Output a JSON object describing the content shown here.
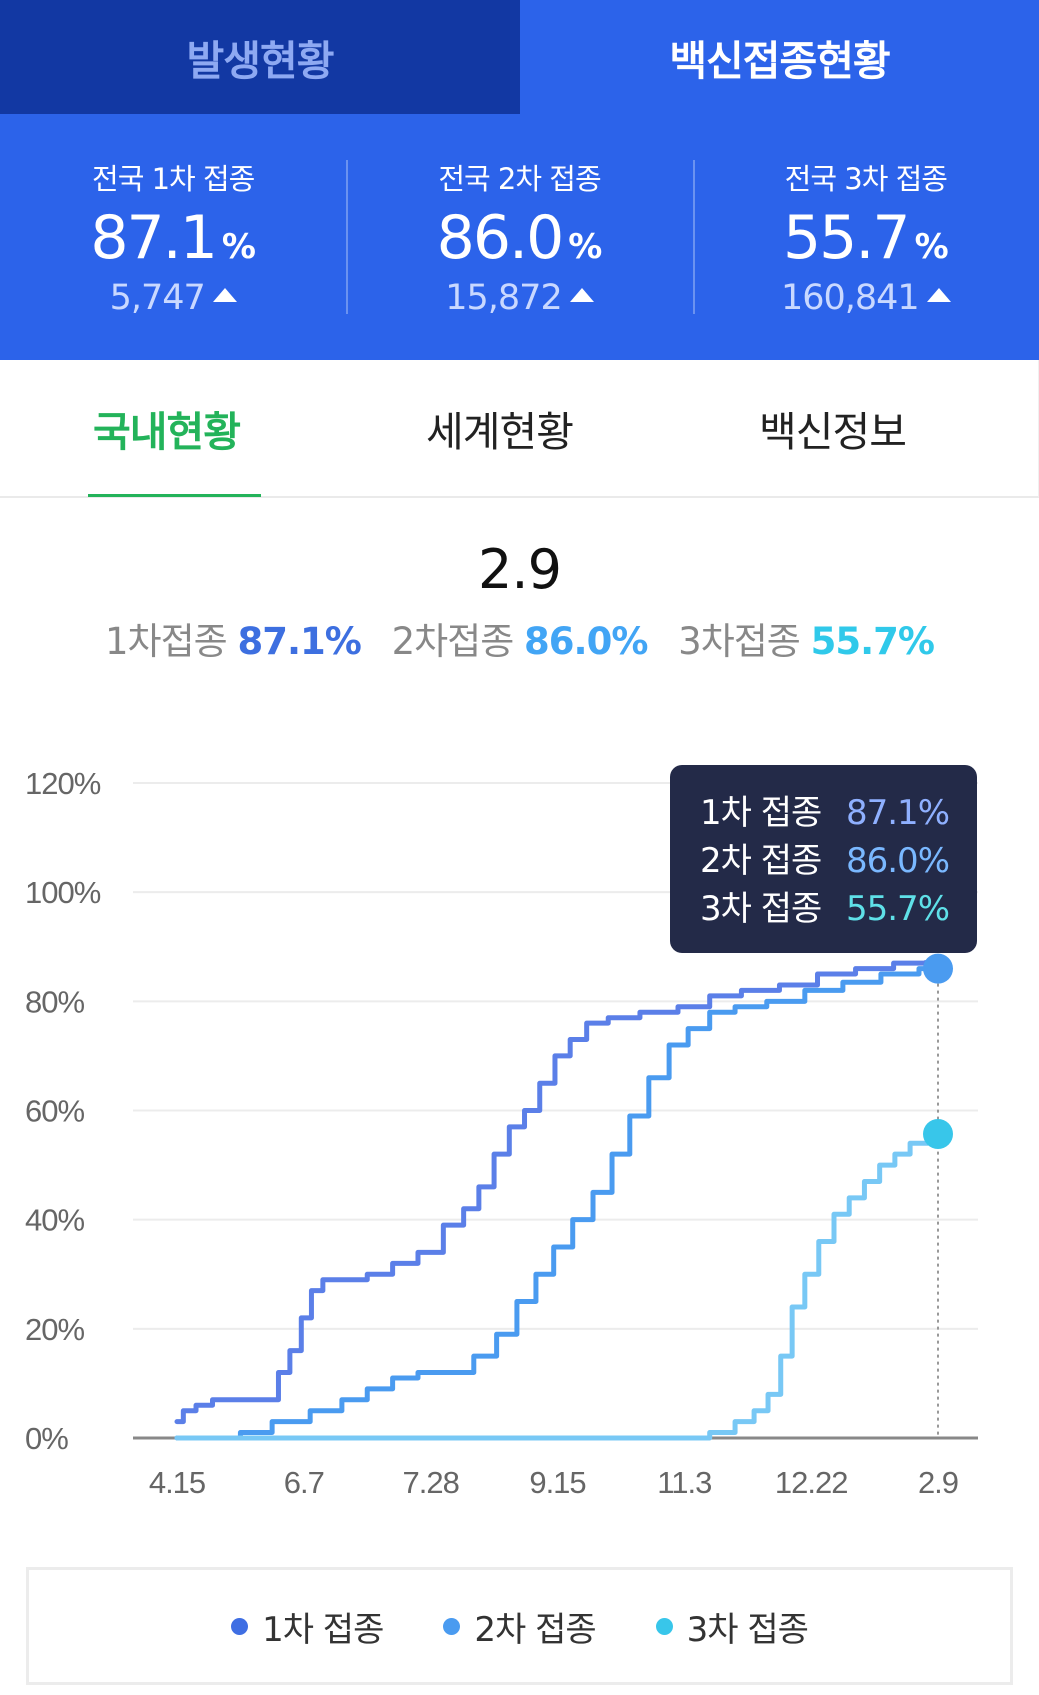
{
  "top_tabs": [
    {
      "label": "발생현황",
      "active": false
    },
    {
      "label": "백신접종현황",
      "active": true
    }
  ],
  "stats": [
    {
      "label": "전국 1차 접종",
      "value": "87.1",
      "unit": "%",
      "delta": "5,747"
    },
    {
      "label": "전국 2차 접종",
      "value": "86.0",
      "unit": "%",
      "delta": "15,872"
    },
    {
      "label": "전국 3차 접종",
      "value": "55.7",
      "unit": "%",
      "delta": "160,841"
    }
  ],
  "sub_tabs": [
    {
      "label": "국내현황",
      "active": true
    },
    {
      "label": "세계현황",
      "active": false
    },
    {
      "label": "백신정보",
      "active": false
    }
  ],
  "summary": {
    "date": "2.9",
    "dose1_label": "1차접종",
    "dose1_value": "87.1%",
    "dose2_label": "2차접종",
    "dose2_value": "86.0%",
    "dose3_label": "3차접종",
    "dose3_value": "55.7%"
  },
  "tooltip": {
    "rows": [
      {
        "label": "1차 접종",
        "value": "87.1%"
      },
      {
        "label": "2차 접종",
        "value": "86.0%"
      },
      {
        "label": "3차 접종",
        "value": "55.7%"
      }
    ]
  },
  "colors": {
    "dose1": "#5b7fe8",
    "dose2": "#4a9bf0",
    "dose3": "#78c8f5",
    "dose3_marker": "#38c6ea",
    "accent": "#2c63ea",
    "active_tab": "#23b35a"
  },
  "chart_data": {
    "type": "line",
    "x_ticks": [
      "4.15",
      "6.7",
      "7.28",
      "9.15",
      "11.3",
      "12.22",
      "2.9"
    ],
    "y_ticks": [
      "0%",
      "20%",
      "40%",
      "60%",
      "80%",
      "100%",
      "120%"
    ],
    "ylim": [
      0,
      120
    ],
    "x_unit": "days since 4.15",
    "xlim": [
      0,
      300
    ],
    "selected_x": 300,
    "series": [
      {
        "name": "1차 접종",
        "points": [
          [
            0,
            3
          ],
          [
            5,
            5
          ],
          [
            10,
            6
          ],
          [
            18,
            7
          ],
          [
            30,
            7
          ],
          [
            38,
            7
          ],
          [
            42,
            12
          ],
          [
            47,
            16
          ],
          [
            51,
            22
          ],
          [
            55,
            27
          ],
          [
            60,
            29
          ],
          [
            70,
            29
          ],
          [
            80,
            30
          ],
          [
            90,
            32
          ],
          [
            100,
            34
          ],
          [
            110,
            39
          ],
          [
            116,
            42
          ],
          [
            122,
            46
          ],
          [
            128,
            52
          ],
          [
            134,
            57
          ],
          [
            140,
            60
          ],
          [
            146,
            65
          ],
          [
            152,
            70
          ],
          [
            158,
            73
          ],
          [
            165,
            76
          ],
          [
            175,
            77
          ],
          [
            190,
            78
          ],
          [
            205,
            79
          ],
          [
            215,
            81
          ],
          [
            230,
            82
          ],
          [
            245,
            83
          ],
          [
            260,
            85
          ],
          [
            275,
            86
          ],
          [
            290,
            87
          ],
          [
            300,
            87.1
          ]
        ]
      },
      {
        "name": "2차 접종",
        "points": [
          [
            0,
            0
          ],
          [
            20,
            0
          ],
          [
            30,
            1
          ],
          [
            45,
            3
          ],
          [
            60,
            5
          ],
          [
            70,
            7
          ],
          [
            80,
            9
          ],
          [
            90,
            11
          ],
          [
            100,
            12
          ],
          [
            112,
            12
          ],
          [
            122,
            15
          ],
          [
            130,
            19
          ],
          [
            138,
            25
          ],
          [
            145,
            30
          ],
          [
            152,
            35
          ],
          [
            160,
            40
          ],
          [
            168,
            45
          ],
          [
            175,
            52
          ],
          [
            182,
            59
          ],
          [
            190,
            66
          ],
          [
            198,
            72
          ],
          [
            205,
            75
          ],
          [
            215,
            78
          ],
          [
            225,
            79
          ],
          [
            240,
            80
          ],
          [
            255,
            82
          ],
          [
            270,
            83.5
          ],
          [
            285,
            85
          ],
          [
            300,
            86.0
          ]
        ]
      },
      {
        "name": "3차 접종",
        "points": [
          [
            0,
            0
          ],
          [
            205,
            0
          ],
          [
            215,
            1
          ],
          [
            225,
            3
          ],
          [
            230,
            5
          ],
          [
            236,
            8
          ],
          [
            240,
            15
          ],
          [
            245,
            24
          ],
          [
            250,
            30
          ],
          [
            256,
            36
          ],
          [
            262,
            41
          ],
          [
            268,
            44
          ],
          [
            274,
            47
          ],
          [
            280,
            50
          ],
          [
            286,
            52
          ],
          [
            292,
            54
          ],
          [
            300,
            55.7
          ]
        ]
      }
    ]
  },
  "legend": [
    {
      "label": "1차 접종"
    },
    {
      "label": "2차 접종"
    },
    {
      "label": "3차 접종"
    }
  ]
}
